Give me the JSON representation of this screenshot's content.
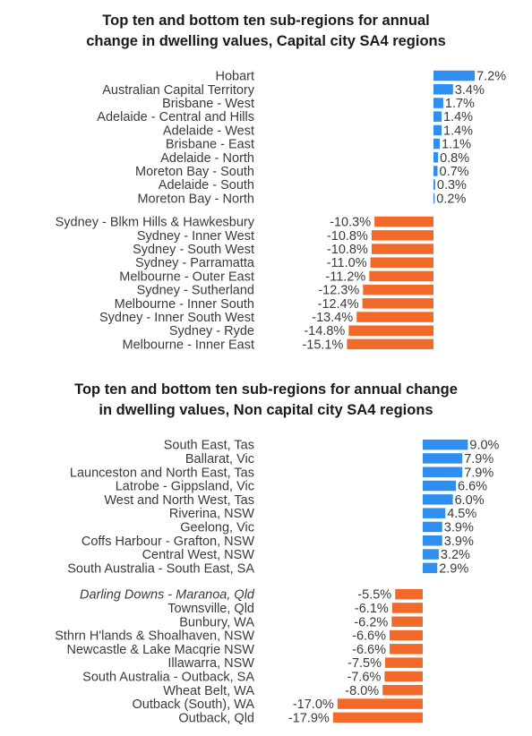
{
  "chart_data": [
    {
      "type": "bar",
      "orientation": "horizontal",
      "title": "Top ten and bottom ten sub-regions for annual change in dwelling values, Capital city SA4 regions",
      "title_lines": [
        "Top ten and bottom ten sub-regions for annual",
        "change in dwelling values, Capital city SA4 regions"
      ],
      "colors": {
        "positive": "#2E8FF0",
        "negative": "#F26A2A"
      },
      "groups": [
        {
          "name": "top",
          "categories": [
            "Hobart",
            "Australian Capital Territory",
            "Brisbane - West",
            "Adelaide - Central and Hills",
            "Adelaide - West",
            "Brisbane - East",
            "Adelaide - North",
            "Moreton Bay - South",
            "Adelaide - South",
            "Moreton Bay - North"
          ],
          "values": [
            7.2,
            3.4,
            1.7,
            1.4,
            1.4,
            1.1,
            0.8,
            0.7,
            0.3,
            0.2
          ],
          "labels": [
            "7.2%",
            "3.4%",
            "1.7%",
            "1.4%",
            "1.4%",
            "1.1%",
            "0.8%",
            "0.7%",
            "0.3%",
            "0.2%"
          ]
        },
        {
          "name": "bottom",
          "categories": [
            "Sydney - Blkm Hills & Hawkesbury",
            "Sydney - Inner West",
            "Sydney - South West",
            "Sydney - Parramatta",
            "Melbourne - Outer East",
            "Sydney - Sutherland",
            "Melbourne - Inner South",
            "Sydney - Inner South West",
            "Sydney - Ryde",
            "Melbourne - Inner East"
          ],
          "values": [
            -10.3,
            -10.8,
            -10.8,
            -11.0,
            -11.2,
            -12.3,
            -12.4,
            -13.4,
            -14.8,
            -15.1
          ],
          "labels": [
            "-10.3%",
            "-10.8%",
            "-10.8%",
            "-11.0%",
            "-11.2%",
            "-12.3%",
            "-12.4%",
            "-13.4%",
            "-14.8%",
            "-15.1%"
          ]
        }
      ],
      "unit": "%"
    },
    {
      "type": "bar",
      "orientation": "horizontal",
      "title": "Top ten and bottom ten sub-regions for annual change in dwelling values, Non capital city SA4 regions",
      "title_lines": [
        "Top ten and bottom ten sub-regions for annual change",
        "in dwelling values, Non capital city SA4 regions"
      ],
      "colors": {
        "positive": "#2E8FF0",
        "negative": "#F26A2A"
      },
      "groups": [
        {
          "name": "top",
          "categories": [
            "South East, Tas",
            "Ballarat, Vic",
            "Launceston and North East, Tas",
            "Latrobe - Gippsland, Vic",
            "West and North West, Tas",
            "Riverina, NSW",
            "Geelong, Vic",
            "Coffs Harbour - Grafton, NSW",
            "Central West, NSW",
            "South Australia - South East, SA"
          ],
          "values": [
            9.0,
            7.9,
            7.9,
            6.6,
            6.0,
            4.5,
            3.9,
            3.9,
            3.2,
            2.9
          ],
          "labels": [
            "9.0%",
            "7.9%",
            "7.9%",
            "6.6%",
            "6.0%",
            "4.5%",
            "3.9%",
            "3.9%",
            "3.2%",
            "2.9%"
          ]
        },
        {
          "name": "bottom",
          "categories": [
            "Darling Downs - Maranoa, Qld",
            "Townsville, Qld",
            "Bunbury, WA",
            "Sthrn H'lands & Shoalhaven, NSW",
            "Newcastle & Lake Macqrie NSW",
            "Illawarra, NSW",
            "South Australia - Outback, SA",
            "Wheat Belt, WA",
            "Outback (South), WA",
            "Outback, Qld"
          ],
          "values": [
            -5.5,
            -6.1,
            -6.2,
            -6.6,
            -6.6,
            -7.5,
            -7.6,
            -8.0,
            -17.0,
            -17.9
          ],
          "labels": [
            "-5.5%",
            "-6.1%",
            "-6.2%",
            "-6.6%",
            "-6.6%",
            "-7.5%",
            "-7.6%",
            "-8.0%",
            "-17.0%",
            "-17.9%"
          ],
          "italic_categories": [
            0
          ]
        }
      ],
      "unit": "%"
    }
  ]
}
